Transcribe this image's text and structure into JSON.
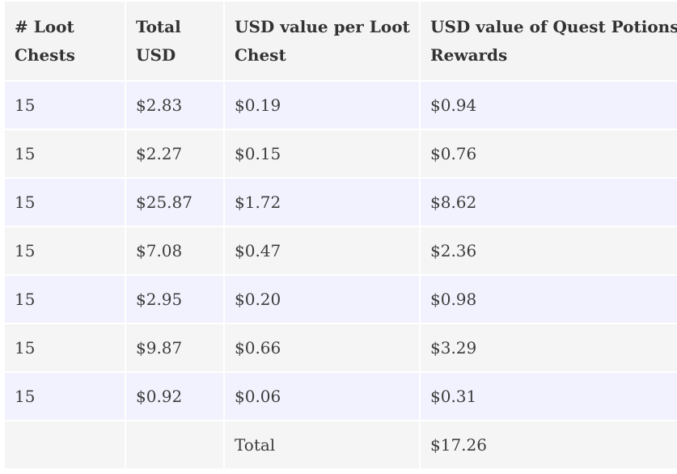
{
  "table": {
    "headers": [
      "# Loot Chests",
      "Total USD",
      "USD value per Loot Chest",
      "USD value of Quest Potions Rewards"
    ],
    "rows": [
      [
        "15",
        "$2.83",
        "$0.19",
        "$0.94"
      ],
      [
        "15",
        "$2.27",
        "$0.15",
        "$0.76"
      ],
      [
        "15",
        "$25.87",
        "$1.72",
        "$8.62"
      ],
      [
        "15",
        "$7.08",
        "$0.47",
        "$2.36"
      ],
      [
        "15",
        "$2.95",
        "$0.20",
        "$0.98"
      ],
      [
        "15",
        "$9.87",
        "$0.66",
        "$3.29"
      ],
      [
        "15",
        "$0.92",
        "$0.06",
        "$0.31"
      ]
    ],
    "total_row": [
      "",
      "",
      "Total",
      "$17.26"
    ]
  },
  "colors": {
    "header_bg": "#f4f4f4",
    "row_tint": "#f1f2fe",
    "row_gray": "#f5f5f5",
    "text": "#3d3d3d"
  }
}
